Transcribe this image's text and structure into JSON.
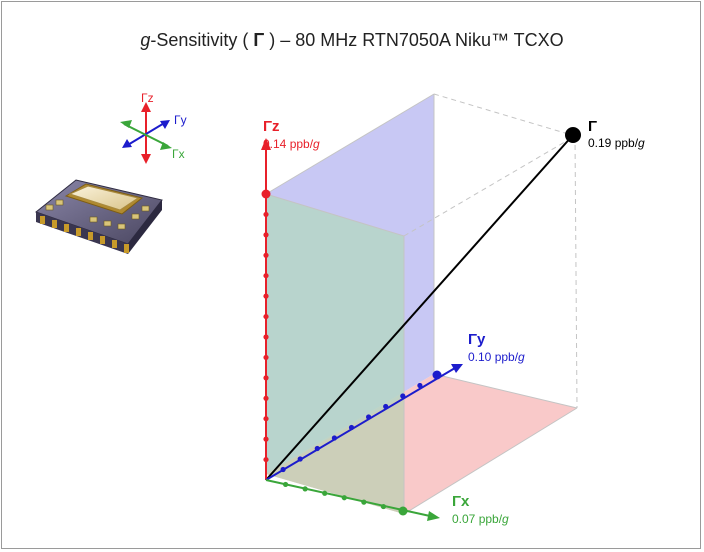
{
  "title": {
    "italic_prefix": "g",
    "text_a": "-Sensitivity ( ",
    "gamma": "Γ",
    "text_b": " ) – 80 MHz RTN7050A Niku™ TCXO"
  },
  "legend_icon": {
    "z_label": "Γz",
    "y_label": "Γy",
    "x_label": "Γx"
  },
  "axes": {
    "z": {
      "name": "Γz",
      "value_text": "0.14 ppb/",
      "unit_italic": "g",
      "value": 0.14,
      "color": "#e8202a"
    },
    "y": {
      "name": "Γy",
      "value_text": "0.10 ppb/",
      "unit_italic": "g",
      "value": 0.1,
      "color": "#1c1ccc"
    },
    "x": {
      "name": "Γx",
      "value_text": "0.07 ppb/",
      "unit_italic": "g",
      "value": 0.07,
      "color": "#3aa63a"
    }
  },
  "total": {
    "name": "Γ",
    "value_text": "0.19 ppb/",
    "unit_italic": "g",
    "value": 0.19,
    "color": "#000000"
  },
  "colors": {
    "z_plane": "#c8c8f4",
    "x_plane": "#f9c9c9",
    "xz_plane": "#b5d6c6",
    "xy_plane": "#d5ccb0",
    "box_edge": "#c4c4c4"
  }
}
